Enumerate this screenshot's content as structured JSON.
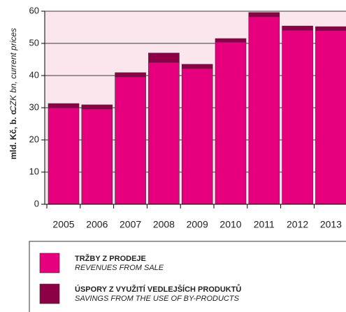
{
  "chart_data": {
    "type": "stacked_bar",
    "y_label": "mld. Kč, b. c.",
    "y_label_en": "CZK bn, current prices",
    "categories": [
      "2005",
      "2006",
      "2007",
      "2008",
      "2009",
      "2010",
      "2011",
      "2012",
      "2013"
    ],
    "series": [
      {
        "name": "TRŽBY Z PRODEJE",
        "name_en": "REVENUES FROM SALE",
        "color": "#e6007e",
        "values": [
          30.0,
          29.6,
          39.6,
          44.1,
          42.2,
          50.4,
          58.3,
          54.1,
          54.0
        ]
      },
      {
        "name": "ÚSPORY Z VYUŽITÍ VEDLEJŠÍCH PRODUKTŮ",
        "name_en": "SAVINGS FROM THE USE OF BY-PRODUCTS",
        "color": "#8c0046",
        "values": [
          1.3,
          1.3,
          1.3,
          2.9,
          1.3,
          1.1,
          1.3,
          1.3,
          1.2
        ]
      }
    ],
    "ylim": [
      0,
      60
    ],
    "yticks": [
      0,
      10,
      20,
      30,
      40,
      50,
      60
    ],
    "grid": true
  }
}
